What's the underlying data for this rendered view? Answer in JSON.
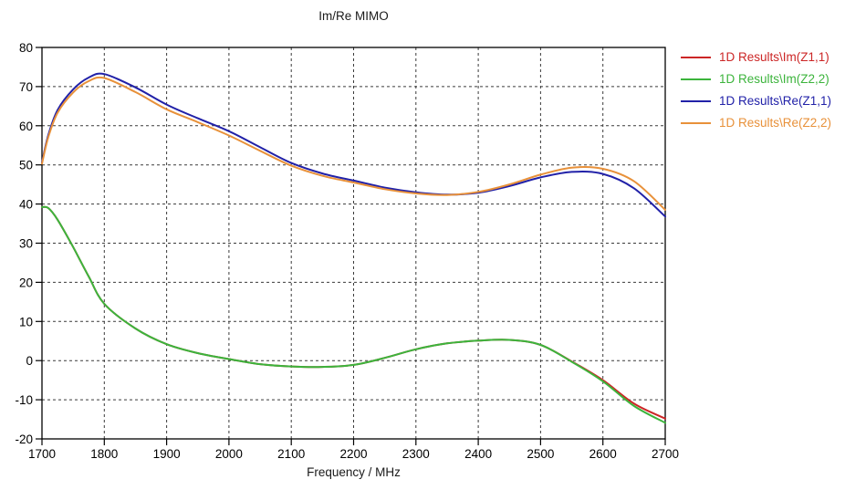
{
  "window": {
    "background": "#ffffff"
  },
  "chart_data": {
    "type": "line",
    "title": "Im/Re MIMO",
    "xlabel": "Frequency / MHz",
    "ylabel": "",
    "xlim": [
      1700,
      2700
    ],
    "ylim": [
      -20,
      80
    ],
    "x_ticks": [
      1700,
      1800,
      1900,
      2000,
      2100,
      2200,
      2300,
      2400,
      2500,
      2600,
      2700
    ],
    "y_ticks": [
      -20,
      -10,
      0,
      10,
      20,
      30,
      40,
      50,
      60,
      70,
      80
    ],
    "grid": "dashed",
    "legend_position": "right",
    "axis_color": "#000000",
    "grid_color": "#3a3a3a",
    "x": [
      1700,
      1710,
      1725,
      1750,
      1775,
      1800,
      1850,
      1900,
      1950,
      2000,
      2050,
      2100,
      2150,
      2200,
      2250,
      2300,
      2350,
      2400,
      2450,
      2500,
      2550,
      2600,
      2650,
      2700
    ],
    "series": [
      {
        "name": "1D Results\\Im(Z1,1)",
        "color": "#cc2626",
        "values": [
          39.2,
          39.0,
          36.0,
          29.0,
          21.5,
          14.5,
          8.2,
          4.2,
          1.9,
          0.4,
          -0.9,
          -1.5,
          -1.6,
          -1.1,
          0.7,
          2.9,
          4.4,
          5.1,
          5.3,
          4.0,
          -0.2,
          -5.0,
          -11.0,
          -14.8
        ]
      },
      {
        "name": "1D Results\\Im(Z2,2)",
        "color": "#3cb43c",
        "values": [
          39.2,
          39.0,
          36.0,
          29.0,
          21.5,
          14.5,
          8.2,
          4.2,
          1.9,
          0.4,
          -0.9,
          -1.5,
          -1.6,
          -1.1,
          0.7,
          2.9,
          4.4,
          5.1,
          5.3,
          4.0,
          -0.3,
          -5.3,
          -11.6,
          -15.9
        ]
      },
      {
        "name": "1D Results\\Re(Z1,1)",
        "color": "#2121a8",
        "values": [
          50.6,
          57.5,
          64.0,
          69.3,
          72.3,
          73.2,
          69.8,
          65.4,
          61.9,
          58.6,
          54.5,
          50.5,
          47.8,
          46.0,
          44.2,
          43.0,
          42.4,
          42.9,
          44.6,
          46.8,
          48.2,
          47.7,
          44.0,
          36.8
        ]
      },
      {
        "name": "1D Results\\Re(Z2,2)",
        "color": "#e8913a",
        "values": [
          50.3,
          57.0,
          63.3,
          68.5,
          71.4,
          72.2,
          68.6,
          64.2,
          60.9,
          57.5,
          53.6,
          49.8,
          47.2,
          45.5,
          43.8,
          42.7,
          42.3,
          43.1,
          45.0,
          47.5,
          49.3,
          49.0,
          45.8,
          38.5
        ]
      }
    ]
  }
}
